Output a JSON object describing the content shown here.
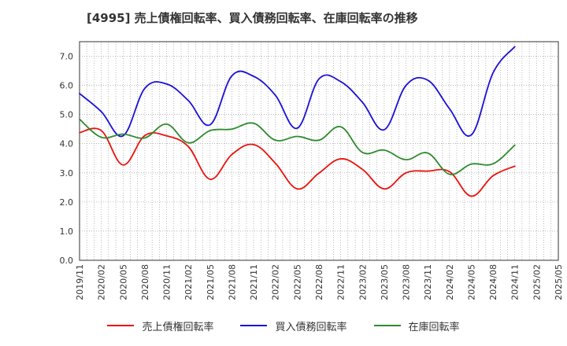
{
  "chart_data": {
    "type": "line",
    "title": "[4995]  売上債権回転率、買入債務回転率、在庫回転率の推移",
    "xlabel": "",
    "ylabel": "",
    "ylim": [
      0,
      7.5
    ],
    "yticks": [
      "0.0",
      "1.0",
      "2.0",
      "3.0",
      "4.0",
      "5.0",
      "6.0",
      "7.0"
    ],
    "ytick_values": [
      0,
      1,
      2,
      3,
      4,
      5,
      6,
      7
    ],
    "grid": true,
    "legend_position": "bottom",
    "x_tick_labels": [
      "2019/11",
      "2020/02",
      "2020/05",
      "2020/08",
      "2020/11",
      "2021/02",
      "2021/05",
      "2021/08",
      "2021/11",
      "2022/02",
      "2022/05",
      "2022/08",
      "2022/11",
      "2023/02",
      "2023/05",
      "2023/08",
      "2023/11",
      "2024/02",
      "2024/05",
      "2024/08",
      "2024/11",
      "2025/02",
      "2025/05"
    ],
    "x": [
      "2019/11",
      "2019/12",
      "2020/01",
      "2020/02",
      "2020/03",
      "2020/04",
      "2020/05",
      "2020/06",
      "2020/07",
      "2020/08",
      "2020/09",
      "2020/10",
      "2020/11",
      "2020/12",
      "2021/01",
      "2021/02",
      "2021/03",
      "2021/04",
      "2021/05",
      "2021/06",
      "2021/07",
      "2021/08",
      "2021/09",
      "2021/10",
      "2021/11",
      "2021/12",
      "2022/01",
      "2022/02",
      "2022/03",
      "2022/04",
      "2022/05",
      "2022/06",
      "2022/07",
      "2022/08",
      "2022/09",
      "2022/10",
      "2022/11",
      "2022/12",
      "2023/01",
      "2023/02",
      "2023/03",
      "2023/04",
      "2023/05",
      "2023/06",
      "2023/07",
      "2023/08",
      "2023/09",
      "2023/10",
      "2023/11",
      "2023/12",
      "2024/01",
      "2024/02",
      "2024/03",
      "2024/04",
      "2024/05",
      "2024/06",
      "2024/07",
      "2024/08",
      "2024/09",
      "2024/10",
      "2024/11",
      "2024/12",
      "2025/01",
      "2025/02",
      "2025/03",
      "2025/04",
      "2025/05"
    ],
    "series": [
      {
        "name": "売上債権回転率",
        "color": "#e8130e",
        "points": [
          [
            "2019/11",
            4.38
          ],
          [
            "2020/02",
            4.45
          ],
          [
            "2020/05",
            3.27
          ],
          [
            "2020/08",
            4.28
          ],
          [
            "2020/11",
            4.27
          ],
          [
            "2021/02",
            3.9
          ],
          [
            "2021/05",
            2.78
          ],
          [
            "2021/08",
            3.63
          ],
          [
            "2021/11",
            3.97
          ],
          [
            "2022/02",
            3.33
          ],
          [
            "2022/05",
            2.45
          ],
          [
            "2022/08",
            2.99
          ],
          [
            "2022/11",
            3.48
          ],
          [
            "2023/02",
            3.12
          ],
          [
            "2023/05",
            2.45
          ],
          [
            "2023/08",
            3.0
          ],
          [
            "2023/11",
            3.06
          ],
          [
            "2024/02",
            3.04
          ],
          [
            "2024/05",
            2.2
          ],
          [
            "2024/08",
            2.9
          ],
          [
            "2024/11",
            3.23
          ]
        ]
      },
      {
        "name": "買入債務回転率",
        "color": "#1a0fd6",
        "points": [
          [
            "2019/11",
            5.72
          ],
          [
            "2020/02",
            5.1
          ],
          [
            "2020/05",
            4.27
          ],
          [
            "2020/08",
            5.9
          ],
          [
            "2020/11",
            6.05
          ],
          [
            "2021/02",
            5.48
          ],
          [
            "2021/05",
            4.65
          ],
          [
            "2021/08",
            6.33
          ],
          [
            "2021/11",
            6.31
          ],
          [
            "2022/02",
            5.66
          ],
          [
            "2022/05",
            4.53
          ],
          [
            "2022/08",
            6.22
          ],
          [
            "2022/11",
            6.13
          ],
          [
            "2023/02",
            5.42
          ],
          [
            "2023/05",
            4.48
          ],
          [
            "2023/08",
            6.0
          ],
          [
            "2023/11",
            6.18
          ],
          [
            "2024/02",
            5.2
          ],
          [
            "2024/05",
            4.3
          ],
          [
            "2024/08",
            6.43
          ],
          [
            "2024/11",
            7.33
          ]
        ]
      },
      {
        "name": "在庫回転率",
        "color": "#2e8a2e",
        "points": [
          [
            "2019/11",
            4.84
          ],
          [
            "2020/02",
            4.22
          ],
          [
            "2020/05",
            4.33
          ],
          [
            "2020/08",
            4.2
          ],
          [
            "2020/11",
            4.67
          ],
          [
            "2021/02",
            4.03
          ],
          [
            "2021/05",
            4.45
          ],
          [
            "2021/08",
            4.5
          ],
          [
            "2021/11",
            4.7
          ],
          [
            "2022/02",
            4.12
          ],
          [
            "2022/05",
            4.25
          ],
          [
            "2022/08",
            4.12
          ],
          [
            "2022/11",
            4.58
          ],
          [
            "2023/02",
            3.7
          ],
          [
            "2023/05",
            3.78
          ],
          [
            "2023/08",
            3.45
          ],
          [
            "2023/11",
            3.68
          ],
          [
            "2024/02",
            2.95
          ],
          [
            "2024/05",
            3.3
          ],
          [
            "2024/08",
            3.31
          ],
          [
            "2024/11",
            3.95
          ]
        ]
      }
    ]
  }
}
